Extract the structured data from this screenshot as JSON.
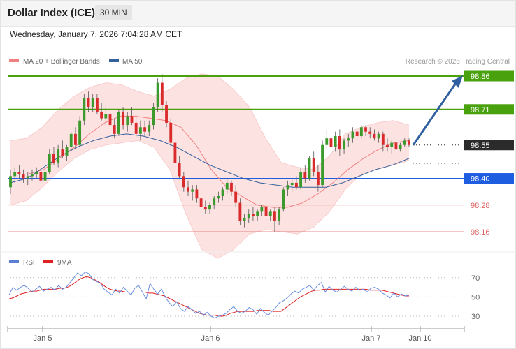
{
  "header": {
    "title": "Dollar Index (ICE)",
    "interval": "30 MIN",
    "date": "Wednesday, January 7, 2026 7:04:28 AM CET"
  },
  "main_legend": {
    "items": [
      {
        "label": "MA 20 + Bollinger Bands",
        "color": "#f08080"
      },
      {
        "label": "MA 50",
        "color": "#34609c"
      }
    ],
    "credit": "Research © 2026 Trading Central"
  },
  "rsi_legend": {
    "items": [
      {
        "label": "RSI",
        "color": "#5b7fd6"
      },
      {
        "label": "9MA",
        "color": "#e02020"
      }
    ]
  },
  "chart_data": [
    {
      "type": "candlestick",
      "yaxis_labels": [
        "98.86",
        "98.71",
        "98.55",
        "98.40",
        "98.28",
        "98.16"
      ],
      "ylim": [
        98.0,
        98.92
      ],
      "levels": [
        {
          "value": 98.86,
          "label": "98.86",
          "color": "#4aa10e",
          "style": "solid"
        },
        {
          "value": 98.71,
          "label": "98.71",
          "color": "#4aa10e",
          "style": "solid"
        },
        {
          "value": 98.55,
          "label": "98.55",
          "color": "#2b2b2b",
          "style": "dotted"
        },
        {
          "value": 98.4,
          "label": "98.40",
          "color": "#1f5de0",
          "style": "solid"
        },
        {
          "value": 98.28,
          "label": "98.28",
          "color": "#e06060",
          "style": "thin"
        },
        {
          "value": 98.16,
          "label": "98.16",
          "color": "#e06060",
          "style": "thin"
        }
      ],
      "arrow": {
        "from": 98.55,
        "to": 98.86
      },
      "ohlc": [
        [
          98.36,
          98.44,
          98.33,
          98.41
        ],
        [
          98.41,
          98.45,
          98.38,
          98.43
        ],
        [
          98.43,
          98.46,
          98.4,
          98.42
        ],
        [
          98.42,
          98.44,
          98.38,
          98.4
        ],
        [
          98.4,
          98.43,
          98.37,
          98.41
        ],
        [
          98.41,
          98.44,
          98.39,
          98.42
        ],
        [
          98.42,
          98.45,
          98.4,
          98.43
        ],
        [
          98.43,
          98.44,
          98.38,
          98.39
        ],
        [
          98.39,
          98.44,
          98.37,
          98.43
        ],
        [
          98.43,
          98.53,
          98.42,
          98.51
        ],
        [
          98.51,
          98.54,
          98.46,
          98.47
        ],
        [
          98.47,
          98.55,
          98.45,
          98.53
        ],
        [
          98.53,
          98.57,
          98.49,
          98.5
        ],
        [
          98.5,
          98.55,
          98.48,
          98.54
        ],
        [
          98.54,
          98.61,
          98.52,
          98.6
        ],
        [
          98.6,
          98.63,
          98.53,
          98.55
        ],
        [
          98.55,
          98.68,
          98.54,
          98.66
        ],
        [
          98.66,
          98.78,
          98.64,
          98.76
        ],
        [
          98.76,
          98.79,
          98.7,
          98.72
        ],
        [
          98.72,
          98.78,
          98.7,
          98.76
        ],
        [
          98.76,
          98.78,
          98.69,
          98.7
        ],
        [
          98.7,
          98.74,
          98.66,
          98.67
        ],
        [
          98.67,
          98.72,
          98.64,
          98.69
        ],
        [
          98.69,
          98.71,
          98.62,
          98.64
        ],
        [
          98.64,
          98.67,
          98.58,
          98.6
        ],
        [
          98.6,
          98.71,
          98.59,
          98.7
        ],
        [
          98.7,
          98.72,
          98.62,
          98.64
        ],
        [
          98.64,
          98.7,
          98.61,
          98.68
        ],
        [
          98.68,
          98.72,
          98.64,
          98.65
        ],
        [
          98.65,
          98.68,
          98.58,
          98.6
        ],
        [
          98.6,
          98.66,
          98.57,
          98.63
        ],
        [
          98.63,
          98.66,
          98.59,
          98.61
        ],
        [
          98.61,
          98.66,
          98.59,
          98.64
        ],
        [
          98.64,
          98.74,
          98.62,
          98.72
        ],
        [
          98.72,
          98.85,
          98.7,
          98.83
        ],
        [
          98.83,
          98.87,
          98.7,
          98.73
        ],
        [
          98.73,
          98.75,
          98.63,
          98.65
        ],
        [
          98.65,
          98.67,
          98.54,
          98.56
        ],
        [
          98.56,
          98.59,
          98.45,
          98.47
        ],
        [
          98.47,
          98.5,
          98.4,
          98.41
        ],
        [
          98.41,
          98.43,
          98.34,
          98.36
        ],
        [
          98.36,
          98.39,
          98.32,
          98.34
        ],
        [
          98.34,
          98.37,
          98.3,
          98.35
        ],
        [
          98.35,
          98.37,
          98.29,
          98.31
        ],
        [
          98.31,
          98.33,
          98.25,
          98.27
        ],
        [
          98.27,
          98.3,
          98.24,
          98.26
        ],
        [
          98.26,
          98.29,
          98.24,
          98.28
        ],
        [
          98.28,
          98.32,
          98.26,
          98.31
        ],
        [
          98.31,
          98.34,
          98.29,
          98.32
        ],
        [
          98.32,
          98.36,
          98.3,
          98.35
        ],
        [
          98.35,
          98.4,
          98.33,
          98.38
        ],
        [
          98.38,
          98.39,
          98.32,
          98.34
        ],
        [
          98.34,
          98.37,
          98.27,
          98.29
        ],
        [
          98.29,
          98.31,
          98.19,
          98.21
        ],
        [
          98.21,
          98.24,
          98.18,
          98.22
        ],
        [
          98.22,
          98.26,
          98.2,
          98.24
        ],
        [
          98.24,
          98.27,
          98.21,
          98.23
        ],
        [
          98.23,
          98.26,
          98.21,
          98.25
        ],
        [
          98.25,
          98.28,
          98.23,
          98.27
        ],
        [
          98.27,
          98.29,
          98.22,
          98.23
        ],
        [
          98.23,
          98.26,
          98.21,
          98.25
        ],
        [
          98.25,
          98.27,
          98.16,
          98.21
        ],
        [
          98.21,
          98.27,
          98.19,
          98.26
        ],
        [
          98.26,
          98.36,
          98.25,
          98.35
        ],
        [
          98.35,
          98.39,
          98.32,
          98.37
        ],
        [
          98.37,
          98.4,
          98.34,
          98.38
        ],
        [
          98.38,
          98.41,
          98.35,
          98.36
        ],
        [
          98.36,
          98.45,
          98.35,
          98.43
        ],
        [
          98.43,
          98.46,
          98.38,
          98.4
        ],
        [
          98.4,
          98.5,
          98.39,
          98.49
        ],
        [
          98.49,
          98.52,
          98.41,
          98.43
        ],
        [
          98.43,
          98.46,
          98.34,
          98.37
        ],
        [
          98.37,
          98.57,
          98.36,
          98.55
        ],
        [
          98.55,
          98.62,
          98.53,
          98.58
        ],
        [
          98.58,
          98.6,
          98.52,
          98.54
        ],
        [
          98.54,
          98.61,
          98.52,
          98.59
        ],
        [
          98.59,
          98.62,
          98.5,
          98.53
        ],
        [
          98.53,
          98.58,
          98.51,
          98.57
        ],
        [
          98.57,
          98.6,
          98.54,
          98.58
        ],
        [
          98.58,
          98.63,
          98.56,
          98.61
        ],
        [
          98.61,
          98.62,
          98.57,
          98.59
        ],
        [
          98.59,
          98.64,
          98.58,
          98.63
        ],
        [
          98.63,
          98.64,
          98.59,
          98.61
        ],
        [
          98.61,
          98.63,
          98.58,
          98.6
        ],
        [
          98.6,
          98.62,
          98.57,
          98.58
        ],
        [
          98.58,
          98.61,
          98.56,
          98.6
        ],
        [
          98.6,
          98.61,
          98.52,
          98.55
        ],
        [
          98.55,
          98.58,
          98.52,
          98.54
        ],
        [
          98.54,
          98.57,
          98.51,
          98.56
        ],
        [
          98.56,
          98.58,
          98.51,
          98.53
        ],
        [
          98.53,
          98.56,
          98.52,
          98.55
        ],
        [
          98.55,
          98.58,
          98.54,
          98.57
        ],
        [
          98.57,
          98.58,
          98.54,
          98.55
        ]
      ],
      "ma20": [
        98.42,
        98.44,
        98.49,
        98.54,
        98.6,
        98.65,
        98.68,
        98.68,
        98.67,
        98.66,
        98.63,
        98.55,
        98.44,
        98.36,
        98.32,
        98.28,
        98.27,
        98.27,
        98.29,
        98.33,
        98.38,
        98.44,
        98.49,
        98.53,
        98.56,
        98.57
      ],
      "ma50": [
        98.38,
        98.4,
        98.45,
        98.5,
        98.54,
        98.57,
        98.59,
        98.6,
        98.59,
        98.57,
        98.54,
        98.5,
        98.46,
        98.43,
        98.4,
        98.38,
        98.37,
        98.36,
        98.36,
        98.36,
        98.38,
        98.41,
        98.44,
        98.46,
        98.49
      ],
      "bb_upper": [
        98.57,
        98.58,
        98.63,
        98.71,
        98.77,
        98.81,
        98.83,
        98.82,
        98.79,
        98.77,
        98.8,
        98.85,
        98.87,
        98.86,
        98.8,
        98.72,
        98.58,
        98.47,
        98.45,
        98.44,
        98.5,
        98.6,
        98.63,
        98.65,
        98.66,
        98.64
      ],
      "bb_lower": [
        98.28,
        98.3,
        98.36,
        98.43,
        98.49,
        98.53,
        98.55,
        98.56,
        98.57,
        98.54,
        98.44,
        98.24,
        98.08,
        98.04,
        98.08,
        98.15,
        98.17,
        98.16,
        98.15,
        98.18,
        98.25,
        98.35,
        98.42,
        98.44,
        98.46,
        98.48
      ]
    },
    {
      "type": "line",
      "yaxis_labels": [
        "70",
        "50",
        "30"
      ],
      "ylim": [
        22,
        80
      ],
      "x_labels": [
        "Jan 5",
        "Jan 6",
        "Jan 7",
        "Jan 10"
      ],
      "series": [
        {
          "name": "RSI",
          "values": [
            52,
            60,
            57,
            60,
            62,
            59,
            55,
            58,
            61,
            56,
            58,
            60,
            57,
            62,
            58,
            60,
            65,
            70,
            75,
            72,
            76,
            74,
            68,
            66,
            64,
            58,
            55,
            52,
            58,
            54,
            60,
            56,
            52,
            59,
            62,
            55,
            48,
            64,
            58,
            53,
            58,
            50,
            44,
            40,
            45,
            38,
            35,
            40,
            37,
            33,
            35,
            31,
            34,
            30,
            28,
            30,
            31,
            33,
            37,
            40,
            35,
            33,
            35,
            39,
            37,
            32,
            38,
            34,
            31,
            35,
            39,
            44,
            46,
            49,
            53,
            56,
            54,
            58,
            60,
            62,
            57,
            62,
            65,
            55,
            61,
            57,
            55,
            58,
            61,
            58,
            56,
            60,
            57,
            58,
            55,
            59,
            60,
            58,
            54,
            52,
            49,
            54,
            50,
            53,
            51,
            52
          ]
        },
        {
          "name": "9MA",
          "values": [
            48,
            49,
            51,
            53,
            54,
            55,
            56,
            56,
            57,
            58,
            58,
            58,
            58,
            59,
            59,
            60,
            62,
            65,
            68,
            70,
            71,
            70,
            68,
            66,
            63,
            60,
            58,
            57,
            56,
            56,
            55,
            55,
            55,
            55,
            55,
            55,
            54,
            54,
            53,
            52,
            51,
            49,
            47,
            45,
            43,
            41,
            39,
            37,
            35,
            33,
            32,
            31,
            31,
            31,
            30,
            30,
            31,
            33,
            34,
            35,
            35,
            35,
            35,
            35,
            36,
            36,
            36,
            36,
            35,
            35,
            35,
            38,
            41,
            44,
            47,
            50,
            52,
            54,
            56,
            57,
            57,
            58,
            58,
            58,
            58,
            58,
            58,
            58,
            58,
            58,
            58,
            58,
            58,
            57,
            57,
            57,
            57,
            56,
            55,
            54,
            53,
            52,
            51,
            51
          ]
        }
      ]
    }
  ]
}
